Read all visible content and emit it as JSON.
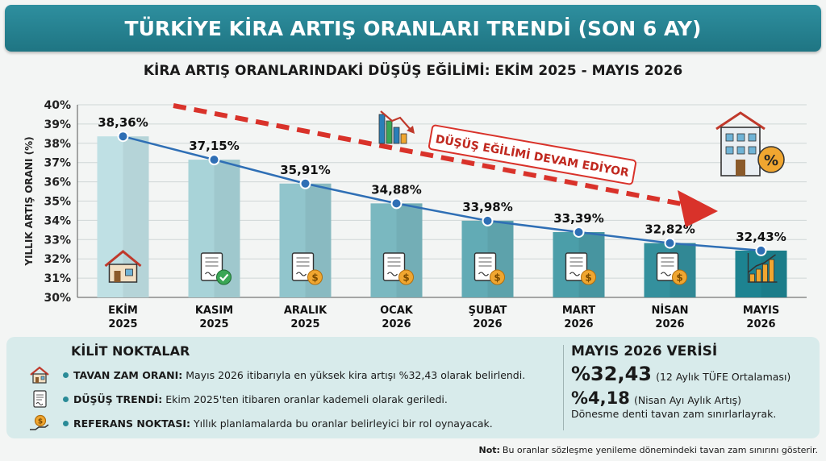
{
  "header": {
    "title": "TÜRKİYE KİRA ARTIŞ ORANLARI TRENDİ (SON 6 AY)"
  },
  "chart_data": {
    "type": "bar",
    "title": "KİRA ARTIŞ ORANLARINDAKİ DÜŞÜŞ EĞİLİMİ: EKİM 2025 - MAYIS 2026",
    "ylabel": "YILLIK ARTIŞ ORANI (%)",
    "xlabel": "",
    "ylim": [
      30,
      40
    ],
    "yticks": [
      "30%",
      "31%",
      "32%",
      "33%",
      "34%",
      "35%",
      "36%",
      "37%",
      "38%",
      "39%",
      "40%"
    ],
    "categories": [
      [
        "EKİM",
        "2025"
      ],
      [
        "KASIM",
        "2025"
      ],
      [
        "ARALIK",
        "2025"
      ],
      [
        "OCAK",
        "2026"
      ],
      [
        "ŞUBAT",
        "2026"
      ],
      [
        "MART",
        "2026"
      ],
      [
        "NİSAN",
        "2026"
      ],
      [
        "MAYIS",
        "2026"
      ]
    ],
    "values": [
      38.36,
      37.15,
      35.91,
      34.88,
      33.98,
      33.39,
      32.82,
      32.43
    ],
    "data_labels": [
      "38,36%",
      "37,15%",
      "35,91%",
      "34,88%",
      "33,98%",
      "33,39%",
      "32,82%",
      "32,43%"
    ],
    "overlay": "line",
    "grid": true,
    "annotation": "DÜŞÜŞ EĞİLİMİ DEVAM EDİYOR",
    "bar_icons": [
      "house-icon",
      "document-check-icon",
      "document-coin-icon",
      "document-coin-icon",
      "document-coin-icon",
      "document-coin-icon",
      "document-coin-icon",
      "rising-chart-icon"
    ],
    "colors": {
      "bar_light": "#bfe0e4",
      "bar_dark": "#1d8391",
      "line": "#2f6fb5",
      "arrow": "#d9322a",
      "grid": "#cfd6d6"
    }
  },
  "key_points": {
    "title": "KİLİT NOKTALAR",
    "items": [
      {
        "icon": "house-icon",
        "label": "TAVAN ZAM ORANI:",
        "text": "Mayıs 2026 itibarıyla en yüksek kira artışı %32,43 olarak belirlendi."
      },
      {
        "icon": "document-icon",
        "label": "DÜŞÜŞ TRENDİ:",
        "text": "Ekim 2025'ten itibaren oranlar kademeli olarak geriledi."
      },
      {
        "icon": "coin-hand-icon",
        "label": "REFERANS NOKTASI:",
        "text": "Yıllık planlamalarda bu oranlar belirleyici bir rol oynayacak."
      }
    ]
  },
  "summary": {
    "title": "MAYIS 2026 VERİSİ",
    "main_value": "%32,43",
    "main_caption": "(12 Aylık TÜFE Ortalaması)",
    "secondary_value": "%4,18",
    "secondary_caption": "(Nisan Ayı Aylık Artış)",
    "note": "Dönesme denti tavan zam sınırlarlayrak."
  },
  "footnote": {
    "label": "Not:",
    "text": "Bu oranlar sözleşme yenileme dönemindeki tavan zam sınırını gösterir."
  }
}
